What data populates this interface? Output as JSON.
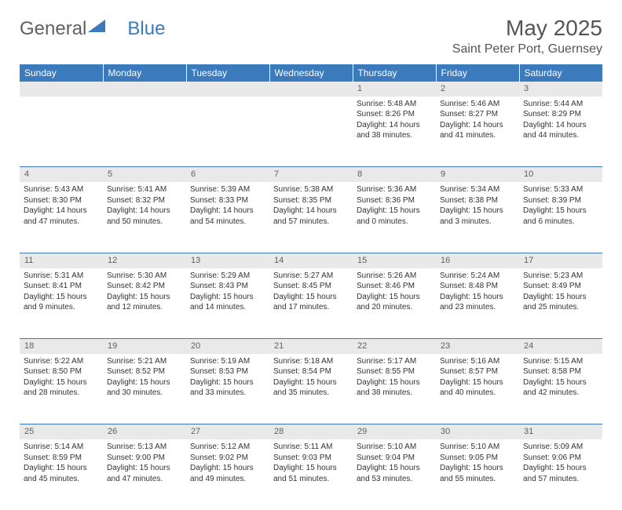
{
  "logo": {
    "text1": "General",
    "text2": "Blue"
  },
  "title": "May 2025",
  "location": "Saint Peter Port, Guernsey",
  "colors": {
    "headerBg": "#3a7abd",
    "dayRowBg": "#e9e9e9",
    "border": "#3a7abd",
    "text": "#333333"
  },
  "weekdays": [
    "Sunday",
    "Monday",
    "Tuesday",
    "Wednesday",
    "Thursday",
    "Friday",
    "Saturday"
  ],
  "weeks": [
    {
      "nums": [
        "",
        "",
        "",
        "",
        "1",
        "2",
        "3"
      ],
      "cells": [
        {},
        {},
        {},
        {},
        {
          "sunrise": "Sunrise: 5:48 AM",
          "sunset": "Sunset: 8:26 PM",
          "dayl1": "Daylight: 14 hours",
          "dayl2": "and 38 minutes."
        },
        {
          "sunrise": "Sunrise: 5:46 AM",
          "sunset": "Sunset: 8:27 PM",
          "dayl1": "Daylight: 14 hours",
          "dayl2": "and 41 minutes."
        },
        {
          "sunrise": "Sunrise: 5:44 AM",
          "sunset": "Sunset: 8:29 PM",
          "dayl1": "Daylight: 14 hours",
          "dayl2": "and 44 minutes."
        }
      ]
    },
    {
      "nums": [
        "4",
        "5",
        "6",
        "7",
        "8",
        "9",
        "10"
      ],
      "cells": [
        {
          "sunrise": "Sunrise: 5:43 AM",
          "sunset": "Sunset: 8:30 PM",
          "dayl1": "Daylight: 14 hours",
          "dayl2": "and 47 minutes."
        },
        {
          "sunrise": "Sunrise: 5:41 AM",
          "sunset": "Sunset: 8:32 PM",
          "dayl1": "Daylight: 14 hours",
          "dayl2": "and 50 minutes."
        },
        {
          "sunrise": "Sunrise: 5:39 AM",
          "sunset": "Sunset: 8:33 PM",
          "dayl1": "Daylight: 14 hours",
          "dayl2": "and 54 minutes."
        },
        {
          "sunrise": "Sunrise: 5:38 AM",
          "sunset": "Sunset: 8:35 PM",
          "dayl1": "Daylight: 14 hours",
          "dayl2": "and 57 minutes."
        },
        {
          "sunrise": "Sunrise: 5:36 AM",
          "sunset": "Sunset: 8:36 PM",
          "dayl1": "Daylight: 15 hours",
          "dayl2": "and 0 minutes."
        },
        {
          "sunrise": "Sunrise: 5:34 AM",
          "sunset": "Sunset: 8:38 PM",
          "dayl1": "Daylight: 15 hours",
          "dayl2": "and 3 minutes."
        },
        {
          "sunrise": "Sunrise: 5:33 AM",
          "sunset": "Sunset: 8:39 PM",
          "dayl1": "Daylight: 15 hours",
          "dayl2": "and 6 minutes."
        }
      ]
    },
    {
      "nums": [
        "11",
        "12",
        "13",
        "14",
        "15",
        "16",
        "17"
      ],
      "cells": [
        {
          "sunrise": "Sunrise: 5:31 AM",
          "sunset": "Sunset: 8:41 PM",
          "dayl1": "Daylight: 15 hours",
          "dayl2": "and 9 minutes."
        },
        {
          "sunrise": "Sunrise: 5:30 AM",
          "sunset": "Sunset: 8:42 PM",
          "dayl1": "Daylight: 15 hours",
          "dayl2": "and 12 minutes."
        },
        {
          "sunrise": "Sunrise: 5:29 AM",
          "sunset": "Sunset: 8:43 PM",
          "dayl1": "Daylight: 15 hours",
          "dayl2": "and 14 minutes."
        },
        {
          "sunrise": "Sunrise: 5:27 AM",
          "sunset": "Sunset: 8:45 PM",
          "dayl1": "Daylight: 15 hours",
          "dayl2": "and 17 minutes."
        },
        {
          "sunrise": "Sunrise: 5:26 AM",
          "sunset": "Sunset: 8:46 PM",
          "dayl1": "Daylight: 15 hours",
          "dayl2": "and 20 minutes."
        },
        {
          "sunrise": "Sunrise: 5:24 AM",
          "sunset": "Sunset: 8:48 PM",
          "dayl1": "Daylight: 15 hours",
          "dayl2": "and 23 minutes."
        },
        {
          "sunrise": "Sunrise: 5:23 AM",
          "sunset": "Sunset: 8:49 PM",
          "dayl1": "Daylight: 15 hours",
          "dayl2": "and 25 minutes."
        }
      ]
    },
    {
      "nums": [
        "18",
        "19",
        "20",
        "21",
        "22",
        "23",
        "24"
      ],
      "cells": [
        {
          "sunrise": "Sunrise: 5:22 AM",
          "sunset": "Sunset: 8:50 PM",
          "dayl1": "Daylight: 15 hours",
          "dayl2": "and 28 minutes."
        },
        {
          "sunrise": "Sunrise: 5:21 AM",
          "sunset": "Sunset: 8:52 PM",
          "dayl1": "Daylight: 15 hours",
          "dayl2": "and 30 minutes."
        },
        {
          "sunrise": "Sunrise: 5:19 AM",
          "sunset": "Sunset: 8:53 PM",
          "dayl1": "Daylight: 15 hours",
          "dayl2": "and 33 minutes."
        },
        {
          "sunrise": "Sunrise: 5:18 AM",
          "sunset": "Sunset: 8:54 PM",
          "dayl1": "Daylight: 15 hours",
          "dayl2": "and 35 minutes."
        },
        {
          "sunrise": "Sunrise: 5:17 AM",
          "sunset": "Sunset: 8:55 PM",
          "dayl1": "Daylight: 15 hours",
          "dayl2": "and 38 minutes."
        },
        {
          "sunrise": "Sunrise: 5:16 AM",
          "sunset": "Sunset: 8:57 PM",
          "dayl1": "Daylight: 15 hours",
          "dayl2": "and 40 minutes."
        },
        {
          "sunrise": "Sunrise: 5:15 AM",
          "sunset": "Sunset: 8:58 PM",
          "dayl1": "Daylight: 15 hours",
          "dayl2": "and 42 minutes."
        }
      ]
    },
    {
      "nums": [
        "25",
        "26",
        "27",
        "28",
        "29",
        "30",
        "31"
      ],
      "cells": [
        {
          "sunrise": "Sunrise: 5:14 AM",
          "sunset": "Sunset: 8:59 PM",
          "dayl1": "Daylight: 15 hours",
          "dayl2": "and 45 minutes."
        },
        {
          "sunrise": "Sunrise: 5:13 AM",
          "sunset": "Sunset: 9:00 PM",
          "dayl1": "Daylight: 15 hours",
          "dayl2": "and 47 minutes."
        },
        {
          "sunrise": "Sunrise: 5:12 AM",
          "sunset": "Sunset: 9:02 PM",
          "dayl1": "Daylight: 15 hours",
          "dayl2": "and 49 minutes."
        },
        {
          "sunrise": "Sunrise: 5:11 AM",
          "sunset": "Sunset: 9:03 PM",
          "dayl1": "Daylight: 15 hours",
          "dayl2": "and 51 minutes."
        },
        {
          "sunrise": "Sunrise: 5:10 AM",
          "sunset": "Sunset: 9:04 PM",
          "dayl1": "Daylight: 15 hours",
          "dayl2": "and 53 minutes."
        },
        {
          "sunrise": "Sunrise: 5:10 AM",
          "sunset": "Sunset: 9:05 PM",
          "dayl1": "Daylight: 15 hours",
          "dayl2": "and 55 minutes."
        },
        {
          "sunrise": "Sunrise: 5:09 AM",
          "sunset": "Sunset: 9:06 PM",
          "dayl1": "Daylight: 15 hours",
          "dayl2": "and 57 minutes."
        }
      ]
    }
  ]
}
